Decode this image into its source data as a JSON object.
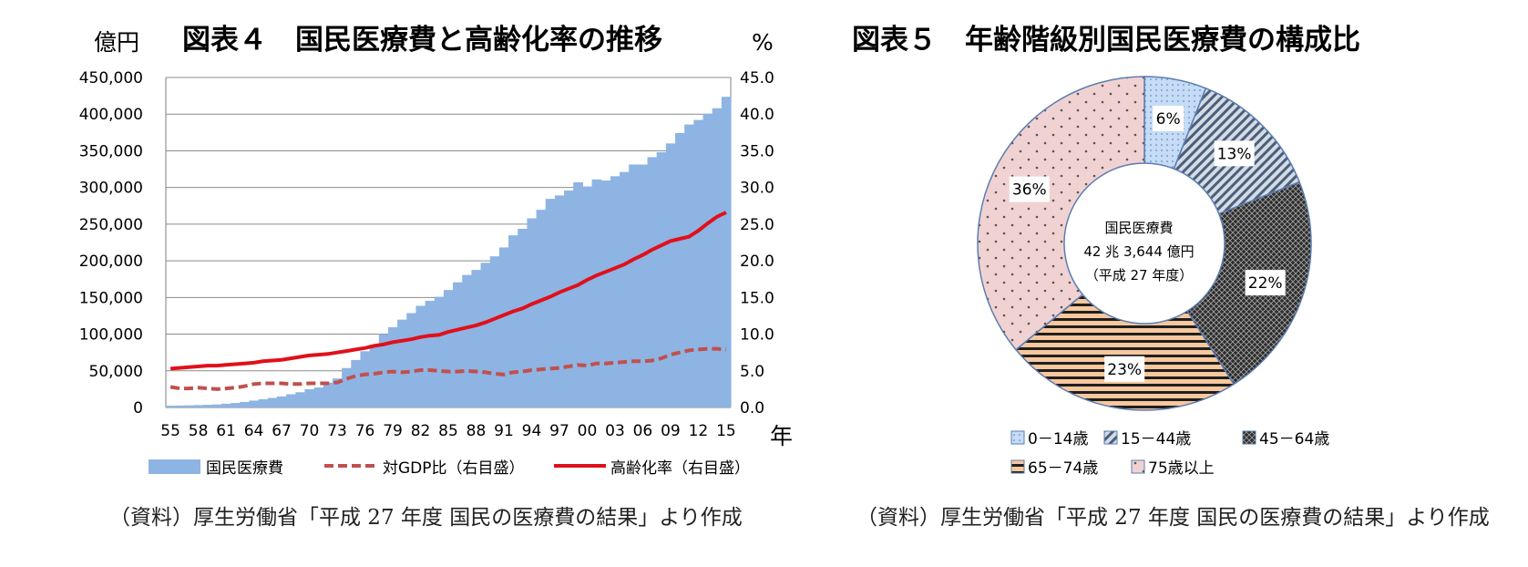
{
  "figure4": {
    "unit_left": "億円",
    "title": "図表４　国民医療費と高齢化率の推移",
    "unit_right": "%",
    "x_unit": "年",
    "source": "（資料）厚生労働省「平成 27 年度  国民の医療費の結果」より作成",
    "colors": {
      "bar": "#8eb4e3",
      "gdp": "#c0504d",
      "aging": "#e0101a",
      "grid": "#8c8c8c"
    }
  },
  "figure5": {
    "title": "図表５　年齢階級別国民医療費の構成比",
    "center_lines": [
      "国民医療費",
      "42 兆 3,644 億円",
      "（平成 27 年度）"
    ],
    "source": "（資料）厚生労働省「平成 27 年度  国民の医療費の結果」より作成"
  },
  "chart_data": [
    {
      "type": "bar",
      "title": "図表４　国民医療費と高齢化率の推移",
      "xlabel": "年",
      "ylabel": "億円",
      "y2label": "%",
      "ylim": [
        0,
        450000
      ],
      "y2lim": [
        0,
        45
      ],
      "yticks": [
        "0",
        "50,000",
        "100,000",
        "150,000",
        "200,000",
        "250,000",
        "300,000",
        "350,000",
        "400,000",
        "450,000"
      ],
      "y2ticks": [
        "0.0",
        "5.0",
        "10.0",
        "15.0",
        "20.0",
        "25.0",
        "30.0",
        "35.0",
        "40.0",
        "45.0"
      ],
      "xtick_labels": [
        "55",
        "58",
        "61",
        "64",
        "67",
        "70",
        "73",
        "76",
        "79",
        "82",
        "85",
        "88",
        "91",
        "94",
        "97",
        "00",
        "03",
        "06",
        "09",
        "12",
        "15"
      ],
      "x": [
        1955,
        1956,
        1957,
        1958,
        1959,
        1960,
        1961,
        1962,
        1963,
        1964,
        1965,
        1966,
        1967,
        1968,
        1969,
        1970,
        1971,
        1972,
        1973,
        1974,
        1975,
        1976,
        1977,
        1978,
        1979,
        1980,
        1981,
        1982,
        1983,
        1984,
        1985,
        1986,
        1987,
        1988,
        1989,
        1990,
        1991,
        1992,
        1993,
        1994,
        1995,
        1996,
        1997,
        1998,
        1999,
        2000,
        2001,
        2002,
        2003,
        2004,
        2005,
        2006,
        2007,
        2008,
        2009,
        2010,
        2011,
        2012,
        2013,
        2014,
        2015
      ],
      "grid": true,
      "legend_position": "bottom",
      "series": [
        {
          "name": "国民医療費",
          "kind": "bar",
          "axis": "left",
          "values": [
            2388,
            2583,
            2897,
            3230,
            3625,
            4095,
            5130,
            6132,
            7541,
            9389,
            11224,
            13002,
            15116,
            18016,
            20780,
            24962,
            27250,
            33994,
            39496,
            53786,
            64779,
            76684,
            85686,
            100042,
            109510,
            119805,
            128709,
            138659,
            145438,
            150932,
            160159,
            170690,
            180759,
            187554,
            197290,
            206074,
            218260,
            234784,
            243631,
            257908,
            269577,
            284542,
            289149,
            295823,
            307019,
            301418,
            310998,
            309507,
            315375,
            321111,
            331289,
            331276,
            341360,
            348084,
            360067,
            374202,
            385850,
            392117,
            400610,
            408071,
            423644
          ]
        },
        {
          "name": "対GDP比（右目盛）",
          "kind": "line",
          "axis": "right",
          "values": [
            2.8,
            2.6,
            2.6,
            2.7,
            2.6,
            2.5,
            2.6,
            2.7,
            2.9,
            3.2,
            3.3,
            3.3,
            3.3,
            3.2,
            3.2,
            3.3,
            3.3,
            3.3,
            3.4,
            3.9,
            4.3,
            4.5,
            4.6,
            4.8,
            4.9,
            4.8,
            4.9,
            5.1,
            5.1,
            5.0,
            4.9,
            4.9,
            5.0,
            4.9,
            4.8,
            4.6,
            4.5,
            4.8,
            4.9,
            5.1,
            5.2,
            5.3,
            5.4,
            5.6,
            5.8,
            5.7,
            6.0,
            6.0,
            6.1,
            6.2,
            6.3,
            6.3,
            6.4,
            6.7,
            7.2,
            7.5,
            7.8,
            7.9,
            8.0,
            8.0,
            7.9
          ]
        },
        {
          "name": "高齢化率（右目盛）",
          "kind": "line",
          "axis": "right",
          "values": [
            5.3,
            5.4,
            5.5,
            5.6,
            5.7,
            5.7,
            5.8,
            5.9,
            6.0,
            6.1,
            6.3,
            6.4,
            6.5,
            6.7,
            6.9,
            7.1,
            7.2,
            7.3,
            7.5,
            7.7,
            7.9,
            8.1,
            8.4,
            8.6,
            8.9,
            9.1,
            9.3,
            9.6,
            9.8,
            9.9,
            10.3,
            10.6,
            10.9,
            11.2,
            11.6,
            12.1,
            12.6,
            13.1,
            13.5,
            14.1,
            14.6,
            15.1,
            15.7,
            16.2,
            16.7,
            17.4,
            18.0,
            18.5,
            19.0,
            19.5,
            20.2,
            20.8,
            21.5,
            22.1,
            22.7,
            23.0,
            23.3,
            24.1,
            25.1,
            26.0,
            26.6
          ]
        }
      ]
    },
    {
      "type": "pie",
      "title": "図表５　年齢階級別国民医療費の構成比",
      "categories": [
        "0－14歳",
        "15－44歳",
        "45－64歳",
        "65－74歳",
        "75歳以上"
      ],
      "values": [
        6,
        13,
        22,
        23,
        36
      ],
      "labels": [
        "6%",
        "13%",
        "22%",
        "23%",
        "36%"
      ],
      "legend_position": "bottom",
      "donut": true
    }
  ]
}
